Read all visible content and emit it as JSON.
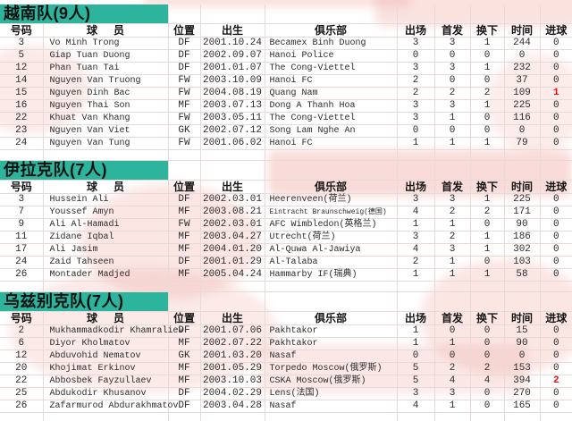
{
  "colors": {
    "team_header_bg": "#2cb49c",
    "goal_highlight": "#ee1111",
    "text": "#2b2b2b",
    "gridline": "#e7dbd8"
  },
  "columns": [
    {
      "key": "number",
      "label": "号码"
    },
    {
      "key": "player",
      "label": "球员"
    },
    {
      "key": "pos",
      "label": "位置"
    },
    {
      "key": "birth",
      "label": "出生"
    },
    {
      "key": "club",
      "label": "俱乐部"
    },
    {
      "key": "apps",
      "label": "出场"
    },
    {
      "key": "starts",
      "label": "首发"
    },
    {
      "key": "subbed",
      "label": "换下"
    },
    {
      "key": "minutes",
      "label": "时间"
    },
    {
      "key": "goals",
      "label": "进球"
    }
  ],
  "sections": [
    {
      "title": "越南队(9人)",
      "rows": [
        {
          "number": "3",
          "player": "Vo Minh Trong",
          "pos": "DF",
          "birth": "2001.10.24",
          "club": "Becamex Binh Duong",
          "apps": "3",
          "starts": "3",
          "subbed": "1",
          "minutes": "244",
          "goals": "0",
          "goals_red": false,
          "club_small": false
        },
        {
          "number": "5",
          "player": "Giap Tuan Duong",
          "pos": "DF",
          "birth": "2002.09.07",
          "club": "Hanoi Police",
          "apps": "0",
          "starts": "0",
          "subbed": "0",
          "minutes": "0",
          "goals": "0",
          "goals_red": false,
          "club_small": false
        },
        {
          "number": "12",
          "player": "Phan Tuan Tai",
          "pos": "DF",
          "birth": "2001.01.07",
          "club": "The Cong-Viettel",
          "apps": "3",
          "starts": "3",
          "subbed": "1",
          "minutes": "232",
          "goals": "0",
          "goals_red": false,
          "club_small": false
        },
        {
          "number": "14",
          "player": "Nguyen Van Truong",
          "pos": "FW",
          "birth": "2003.10.09",
          "club": "Hanoi FC",
          "apps": "2",
          "starts": "0",
          "subbed": "0",
          "minutes": "37",
          "goals": "0",
          "goals_red": false,
          "club_small": false
        },
        {
          "number": "15",
          "player": "Nguyen Dinh Bac",
          "pos": "FW",
          "birth": "2004.08.19",
          "club": "Quang Nam",
          "apps": "2",
          "starts": "2",
          "subbed": "2",
          "minutes": "109",
          "goals": "1",
          "goals_red": true,
          "club_small": false
        },
        {
          "number": "16",
          "player": "Nguyen Thai Son",
          "pos": "MF",
          "birth": "2003.07.13",
          "club": "Dong A Thanh Hoa",
          "apps": "3",
          "starts": "3",
          "subbed": "1",
          "minutes": "225",
          "goals": "0",
          "goals_red": false,
          "club_small": false
        },
        {
          "number": "22",
          "player": "Khuat Van Khang",
          "pos": "FW",
          "birth": "2003.05.11",
          "club": "The Cong-Viettel",
          "apps": "3",
          "starts": "1",
          "subbed": "0",
          "minutes": "116",
          "goals": "0",
          "goals_red": false,
          "club_small": false
        },
        {
          "number": "23",
          "player": "Nguyen Van Viet",
          "pos": "GK",
          "birth": "2002.07.12",
          "club": "Song Lam Nghe An",
          "apps": "0",
          "starts": "0",
          "subbed": "0",
          "minutes": "0",
          "goals": "0",
          "goals_red": false,
          "club_small": false
        },
        {
          "number": "24",
          "player": "Nguyen Van Tung",
          "pos": "FW",
          "birth": "2001.06.02",
          "club": "Hanoi FC",
          "apps": "1",
          "starts": "1",
          "subbed": "1",
          "minutes": "79",
          "goals": "0",
          "goals_red": false,
          "club_small": false
        }
      ]
    },
    {
      "title": "伊拉克队(7人)",
      "rows": [
        {
          "number": "3",
          "player": "Hussein Ali",
          "pos": "DF",
          "birth": "2002.03.01",
          "club": "Heerenveen(荷兰)",
          "apps": "3",
          "starts": "3",
          "subbed": "1",
          "minutes": "225",
          "goals": "0",
          "goals_red": false,
          "club_small": false
        },
        {
          "number": "7",
          "player": "Youssef Amyn",
          "pos": "MF",
          "birth": "2003.08.21",
          "club": "Eintracht Braunschweig(德国)",
          "apps": "4",
          "starts": "2",
          "subbed": "2",
          "minutes": "171",
          "goals": "0",
          "goals_red": false,
          "club_small": true
        },
        {
          "number": "9",
          "player": "Ali Al-Hamadi",
          "pos": "FW",
          "birth": "2002.03.01",
          "club": "AFC Wimbledon(英格兰)",
          "apps": "1",
          "starts": "1",
          "subbed": "0",
          "minutes": "90",
          "goals": "0",
          "goals_red": false,
          "club_small": false
        },
        {
          "number": "11",
          "player": "Zidane Iqbal",
          "pos": "MF",
          "birth": "2003.04.27",
          "club": "Utrecht(荷兰)",
          "apps": "3",
          "starts": "2",
          "subbed": "1",
          "minutes": "186",
          "goals": "0",
          "goals_red": false,
          "club_small": false
        },
        {
          "number": "17",
          "player": "Ali Jasim",
          "pos": "MF",
          "birth": "2004.01.20",
          "club": "Al-Quwa Al-Jawiya",
          "apps": "4",
          "starts": "3",
          "subbed": "1",
          "minutes": "302",
          "goals": "0",
          "goals_red": false,
          "club_small": false
        },
        {
          "number": "24",
          "player": "Zaid Tahseen",
          "pos": "DF",
          "birth": "2001.01.29",
          "club": "Al-Talaba",
          "apps": "2",
          "starts": "1",
          "subbed": "0",
          "minutes": "103",
          "goals": "0",
          "goals_red": false,
          "club_small": false
        },
        {
          "number": "26",
          "player": "Montader Madjed",
          "pos": "MF",
          "birth": "2005.04.24",
          "club": "Hammarby IF(瑞典)",
          "apps": "1",
          "starts": "1",
          "subbed": "1",
          "minutes": "58",
          "goals": "0",
          "goals_red": false,
          "club_small": false
        }
      ]
    },
    {
      "title": "乌兹别克队(7人)",
      "rows": [
        {
          "number": "2",
          "player": "Mukhammadkodir Khamraliev",
          "pos": "DF",
          "birth": "2001.07.06",
          "club": "Pakhtakor",
          "apps": "1",
          "starts": "0",
          "subbed": "0",
          "minutes": "15",
          "goals": "0",
          "goals_red": false,
          "club_small": false
        },
        {
          "number": "6",
          "player": "Diyor Kholmatov",
          "pos": "MF",
          "birth": "2002.07.22",
          "club": "Pakhtakor",
          "apps": "1",
          "starts": "1",
          "subbed": "0",
          "minutes": "90",
          "goals": "0",
          "goals_red": false,
          "club_small": false
        },
        {
          "number": "12",
          "player": "Abduvohid Nematov",
          "pos": "GK",
          "birth": "2001.03.20",
          "club": "Nasaf",
          "apps": "0",
          "starts": "0",
          "subbed": "0",
          "minutes": "0",
          "goals": "0",
          "goals_red": false,
          "club_small": false
        },
        {
          "number": "20",
          "player": "Khojimat Erkinov",
          "pos": "MF",
          "birth": "2001.05.29",
          "club": "Torpedo Moscow(俄罗斯)",
          "apps": "5",
          "starts": "2",
          "subbed": "2",
          "minutes": "153",
          "goals": "0",
          "goals_red": false,
          "club_small": false
        },
        {
          "number": "22",
          "player": "Abbosbek Fayzullaev",
          "pos": "MF",
          "birth": "2003.10.03",
          "club": "CSKA Moscow(俄罗斯)",
          "apps": "5",
          "starts": "4",
          "subbed": "4",
          "minutes": "394",
          "goals": "2",
          "goals_red": true,
          "club_small": false
        },
        {
          "number": "25",
          "player": "Abdukodir Khusanov",
          "pos": "DF",
          "birth": "2004.02.29",
          "club": "Lens(法国)",
          "apps": "3",
          "starts": "3",
          "subbed": "0",
          "minutes": "270",
          "goals": "0",
          "goals_red": false,
          "club_small": false
        },
        {
          "number": "26",
          "player": "Zafarmurod Abdurakhmatov",
          "pos": "DF",
          "birth": "2003.04.28",
          "club": "Nasaf",
          "apps": "4",
          "starts": "1",
          "subbed": "0",
          "minutes": "165",
          "goals": "0",
          "goals_red": false,
          "club_small": false
        }
      ]
    }
  ]
}
